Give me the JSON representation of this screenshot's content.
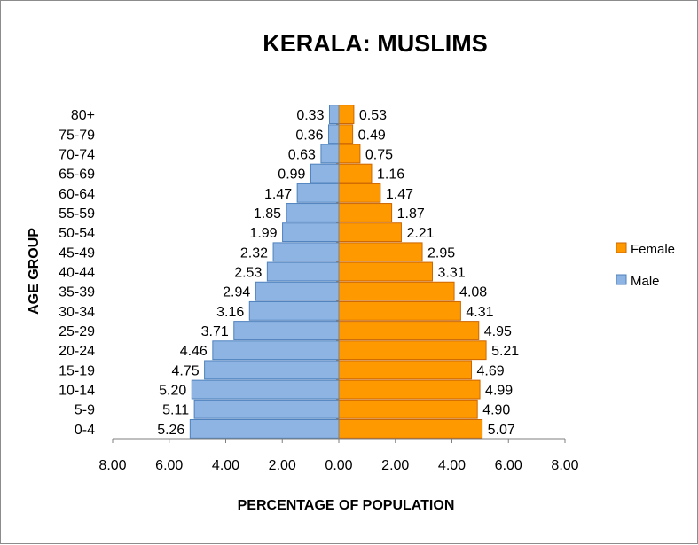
{
  "chart_data": {
    "type": "bar",
    "orientation": "horizontal",
    "title": "KERALA: MUSLIMS",
    "xlabel": "PERCENTAGE OF POPULATION",
    "ylabel": "AGE GROUP",
    "xlim": [
      -8,
      8
    ],
    "x_ticks": [
      "8.00",
      "6.00",
      "4.00",
      "2.00",
      "0.00",
      "2.00",
      "4.00",
      "6.00",
      "8.00"
    ],
    "categories": [
      "0-4",
      "5-9",
      "10-14",
      "15-19",
      "20-24",
      "25-29",
      "30-34",
      "35-39",
      "40-44",
      "45-49",
      "50-54",
      "55-59",
      "60-64",
      "65-69",
      "70-74",
      "75-79",
      "80+"
    ],
    "series": [
      {
        "name": "Female",
        "color": "#ff9900",
        "stroke": "#cc6600",
        "values": [
          5.07,
          4.9,
          4.99,
          4.69,
          5.21,
          4.95,
          4.31,
          4.08,
          3.31,
          2.95,
          2.21,
          1.87,
          1.47,
          1.16,
          0.75,
          0.49,
          0.53
        ],
        "labels": [
          "5.07",
          "4.90",
          "4.99",
          "4.69",
          "5.21",
          "4.95",
          "4.31",
          "4.08",
          "3.31",
          "2.95",
          "2.21",
          "1.87",
          "1.47",
          "1.16",
          "0.75",
          "0.49",
          "0.53"
        ]
      },
      {
        "name": "Male",
        "color": "#8db4e2",
        "stroke": "#4f81bd",
        "values": [
          5.26,
          5.11,
          5.2,
          4.75,
          4.46,
          3.71,
          3.16,
          2.94,
          2.53,
          2.32,
          1.99,
          1.85,
          1.47,
          0.99,
          0.63,
          0.36,
          0.33
        ],
        "labels": [
          "5.26",
          "5.11",
          "5.20",
          "4.75",
          "4.46",
          "3.71",
          "3.16",
          "2.94",
          "2.53",
          "2.32",
          "1.99",
          "1.85",
          "1.47",
          "0.99",
          "0.63",
          "0.36",
          "0.33"
        ]
      }
    ],
    "legend": "right",
    "grid": false
  }
}
